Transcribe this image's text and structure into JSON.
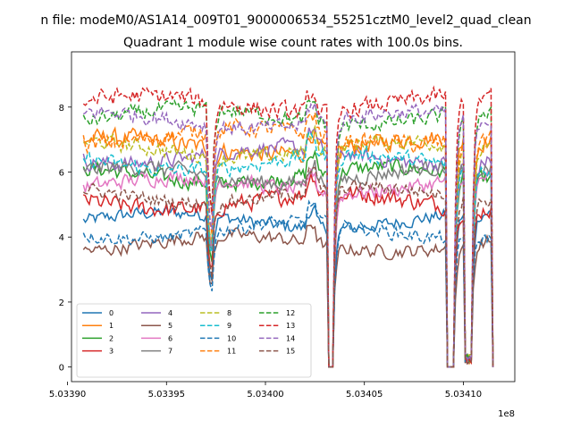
{
  "chart_data": {
    "type": "line",
    "suptitle": "n file: modeM0/AS1A14_009T01_9000006534_55251cztM0_level2_quad_clean",
    "title": "Quadrant 1 module wise count rates with 100.0s bins.",
    "xlabel": "",
    "ylabel": "",
    "x_offset_label": "1e8",
    "xlim": [
      503390200,
      503412600
    ],
    "ylim": [
      -0.45,
      9.7
    ],
    "x_ticks": [
      503390000,
      503395000,
      503400000,
      503405000,
      503410000
    ],
    "x_tick_labels": [
      "5.03390",
      "5.03395",
      "5.03400",
      "5.03405",
      "5.03410"
    ],
    "y_ticks": [
      0,
      2,
      4,
      6,
      8
    ],
    "y_tick_labels": [
      "0",
      "2",
      "4",
      "6",
      "8"
    ],
    "legend_location": "lower-left",
    "legend_columns": 4,
    "segments": [
      {
        "start": 503390800,
        "end": 503403200,
        "shape": "active"
      },
      {
        "start": 503403200,
        "end": 503403500,
        "shape": "gap"
      },
      {
        "start": 503403500,
        "end": 503403700,
        "shape": "active"
      },
      {
        "start": 503403700,
        "end": 503409200,
        "shape": "active"
      },
      {
        "start": 503409200,
        "end": 503409600,
        "shape": "gap"
      },
      {
        "start": 503409600,
        "end": 503410100,
        "shape": "active"
      },
      {
        "start": 503410100,
        "end": 503410500,
        "shape": "dip"
      },
      {
        "start": 503410500,
        "end": 503411500,
        "shape": "active"
      }
    ],
    "series": [
      {
        "name": "0",
        "color": "#1f77b4",
        "dash": "solid",
        "level": 4.5,
        "noise": 0.3
      },
      {
        "name": "1",
        "color": "#ff7f0e",
        "dash": "solid",
        "level": 6.8,
        "noise": 0.4
      },
      {
        "name": "2",
        "color": "#2ca02c",
        "dash": "solid",
        "level": 5.9,
        "noise": 0.35
      },
      {
        "name": "3",
        "color": "#d62728",
        "dash": "solid",
        "level": 5.1,
        "noise": 0.4
      },
      {
        "name": "4",
        "color": "#9467bd",
        "dash": "solid",
        "level": 6.5,
        "noise": 0.35
      },
      {
        "name": "5",
        "color": "#8c564b",
        "dash": "solid",
        "level": 3.8,
        "noise": 0.3
      },
      {
        "name": "6",
        "color": "#e377c2",
        "dash": "solid",
        "level": 5.6,
        "noise": 0.35
      },
      {
        "name": "7",
        "color": "#7f7f7f",
        "dash": "solid",
        "level": 5.9,
        "noise": 0.35
      },
      {
        "name": "8",
        "color": "#bcbd22",
        "dash": "dashed",
        "level": 6.7,
        "noise": 0.35
      },
      {
        "name": "9",
        "color": "#17becf",
        "dash": "dashed",
        "level": 6.3,
        "noise": 0.35
      },
      {
        "name": "10",
        "color": "#1f77b4",
        "dash": "dashed",
        "level": 4.2,
        "noise": 0.3
      },
      {
        "name": "11",
        "color": "#ff7f0e",
        "dash": "dashed",
        "level": 7.1,
        "noise": 0.4
      },
      {
        "name": "12",
        "color": "#2ca02c",
        "dash": "dashed",
        "level": 7.7,
        "noise": 0.35
      },
      {
        "name": "13",
        "color": "#d62728",
        "dash": "dashed",
        "level": 8.1,
        "noise": 0.4
      },
      {
        "name": "14",
        "color": "#9467bd",
        "dash": "dashed",
        "level": 7.6,
        "noise": 0.35
      },
      {
        "name": "15",
        "color": "#8c564b",
        "dash": "dashed",
        "level": 5.3,
        "noise": 0.3
      }
    ]
  }
}
